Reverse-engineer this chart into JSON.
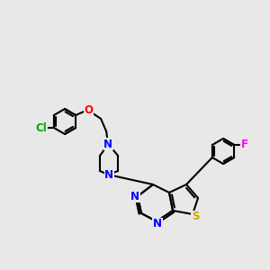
{
  "bg_color": "#e8e8e8",
  "bond_color": "#000000",
  "bond_width": 1.5,
  "atom_colors": {
    "Cl": "#00aa00",
    "O": "#ff0000",
    "N": "#0000ff",
    "S": "#ccaa00",
    "F": "#ff00ff",
    "C": "#000000"
  },
  "font_size": 8.5
}
